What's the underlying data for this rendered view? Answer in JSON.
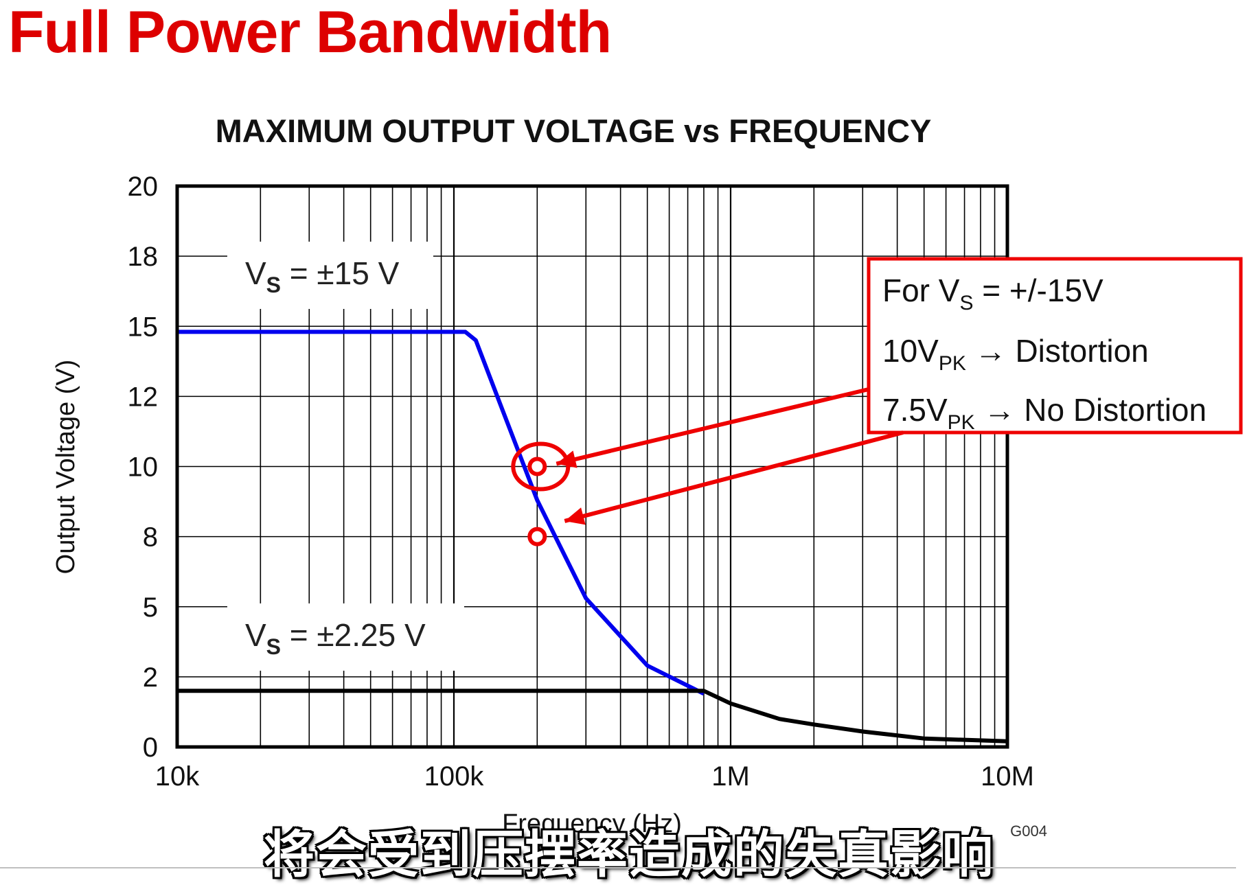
{
  "slide_title": "Full Power Bandwidth",
  "subtitle": "将会受到压摆率造成的失真影响",
  "chart_data": {
    "type": "line",
    "title": "MAXIMUM OUTPUT VOLTAGE vs FREQUENCY",
    "xlabel": "Frequency (Hz)",
    "ylabel": "Output Voltage (V)",
    "x_scale": "log",
    "xlim": [
      10000,
      10000000
    ],
    "ylim": [
      0,
      20
    ],
    "x_ticks": [
      10000,
      100000,
      1000000,
      10000000
    ],
    "x_tick_labels": [
      "10k",
      "100k",
      "1M",
      "10M"
    ],
    "y_ticks": [
      0,
      2.5,
      5,
      7.5,
      10,
      12.5,
      15,
      17.5,
      20
    ],
    "y_tick_labels": [
      "0",
      "2",
      "5",
      "8",
      "10",
      "12",
      "15",
      "18",
      "20"
    ],
    "grid": true,
    "figure_id": "G004",
    "series": [
      {
        "color": "#0000ee",
        "x": [
          10000,
          100000,
          110000,
          120000,
          150000,
          200000,
          300000,
          500000,
          800000
        ],
        "y": [
          14.8,
          14.8,
          14.8,
          14.5,
          12.0,
          8.8,
          5.3,
          2.9,
          1.9
        ]
      },
      {
        "color": "#000000",
        "x": [
          10000,
          800000,
          1000000,
          1500000,
          2000000,
          3000000,
          5000000,
          10000000
        ],
        "y": [
          2.0,
          2.0,
          1.55,
          1.0,
          0.8,
          0.55,
          0.3,
          0.2
        ]
      }
    ],
    "annotations": [
      {
        "label": "V",
        "sub": "S",
        "rest": " = ±15 V",
        "x": 15000,
        "y": 16.5
      },
      {
        "label": "V",
        "sub": "S",
        "rest": " = ±2.25 V",
        "x": 15000,
        "y": 3.6
      }
    ],
    "callout": {
      "border_color": "#ee0000",
      "lines": [
        {
          "main": "For V",
          "sub": "S",
          "rest": " = +/-15V"
        },
        {
          "main": "10V",
          "sub": "PK",
          "rest": " → Distortion"
        },
        {
          "main": "7.5V",
          "sub": "PK",
          "rest": " → No Distortion"
        }
      ],
      "markers": [
        {
          "x": 200000,
          "y": 10,
          "circled": true
        },
        {
          "x": 200000,
          "y": 7.5,
          "circled": false
        }
      ]
    }
  }
}
